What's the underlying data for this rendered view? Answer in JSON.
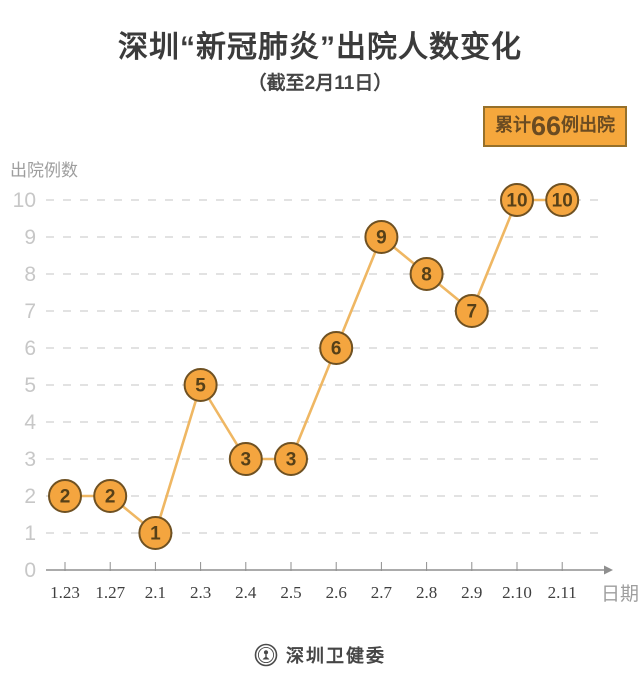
{
  "title": "深圳“新冠肺炎”出院人数变化",
  "subtitle": "（截至2月11日）",
  "badge": {
    "prefix": "累计",
    "number": "66",
    "suffix": "例出院"
  },
  "footer": {
    "org": "深圳卫健委",
    "logo": "shenzhen-health-commission-seal"
  },
  "colors": {
    "title": "#3b3b3b",
    "subtitle": "#454545",
    "badge_bg": "#f5a73c",
    "badge_border": "#96702a",
    "badge_text": "#6a4b22",
    "point_fill": "#f4a53f",
    "point_border": "#6f5122",
    "point_text": "#564018",
    "line": "#efb763",
    "grid": "#e2e2e2",
    "axis": "#8f8f8f",
    "y_tick_label": "#c7c7c7",
    "x_tick_label": "#3f3f3f",
    "axis_title": "#9e9e9e"
  },
  "chart_data": {
    "type": "line",
    "title": "深圳“新冠肺炎”出院人数变化（截至2月11日）",
    "categories": [
      "1.23",
      "1.27",
      "2.1",
      "2.3",
      "2.4",
      "2.5",
      "2.6",
      "2.7",
      "2.8",
      "2.9",
      "2.10",
      "2.11"
    ],
    "values": [
      2,
      2,
      1,
      5,
      3,
      3,
      6,
      9,
      8,
      7,
      10,
      10
    ],
    "total_annotation": "累计66例出院",
    "xlabel": "日期",
    "ylabel": "出院例数",
    "ylim": [
      0,
      10
    ],
    "yticks": [
      0,
      1,
      2,
      3,
      4,
      5,
      6,
      7,
      8,
      9,
      10
    ],
    "grid": "horizontal-dashed",
    "legend": "none",
    "point_labels_shown": true
  }
}
